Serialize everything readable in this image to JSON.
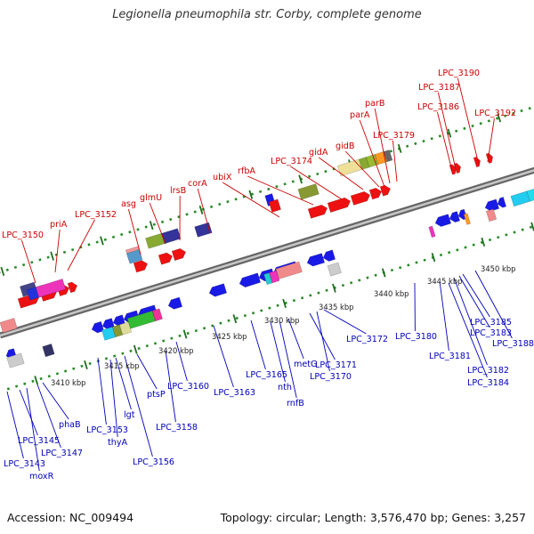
{
  "title": "Legionella pneumophila str. Corby, complete genome",
  "footer": {
    "accession": "Accession: NC_009494",
    "topology": "Topology: circular; Length: 3,576,470 bp; Genes: 3,257"
  },
  "colors": {
    "top_labels": "#cc0000",
    "bottom_labels": "#0000bb",
    "backbone": "#888888",
    "tick_dots": "#2a8a2a",
    "forward_genes": "#ee0000",
    "reverse_genes": "#0000ee"
  },
  "kbp_ticks": [
    "3410 kbp",
    "3415 kbp",
    "3420 kbp",
    "3425 kbp",
    "3430 kbp",
    "3435 kbp",
    "3440 kbp",
    "3445 kbp",
    "3450 kbp"
  ],
  "top_labels": [
    "LPC_3150",
    "priA",
    "LPC_3152",
    "asg",
    "glmU",
    "lrsB",
    "corA",
    "ubiX",
    "rfbA",
    "LPC_3174",
    "gidA",
    "gidB",
    "parA",
    "parB",
    "LPC_3179",
    "LPC_3186",
    "LPC_3187",
    "LPC_3190",
    "LPC_3192"
  ],
  "bottom_labels": [
    "LPC_3143",
    "LPC_3145",
    "moxR",
    "LPC_3147",
    "phaB",
    "LPC_3153",
    "thyA",
    "lgt",
    "LPC_3156",
    "ptsP",
    "LPC_3158",
    "LPC_3160",
    "LPC_3163",
    "LPC_3165",
    "nth",
    "rnfB",
    "metG",
    "LPC_3171",
    "LPC_3170",
    "LPC_3172",
    "LPC_3180",
    "LPC_3181",
    "LPC_3182",
    "LPC_3183",
    "LPC_3184",
    "LPC_3185",
    "LPC_3188"
  ]
}
